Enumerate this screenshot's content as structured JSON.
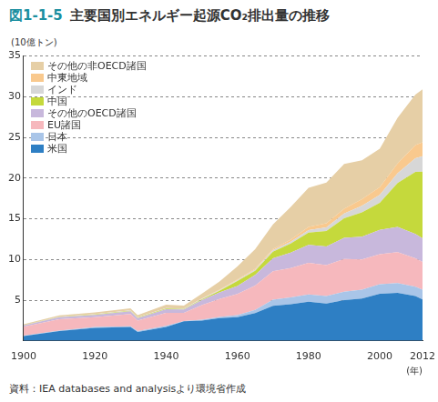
{
  "chart_data": {
    "type": "area",
    "title": "図1-1-5　主要国別エネルギー起源CO₂排出量の推移",
    "y_label": "(10億トン)",
    "x_label": "(年)",
    "note": "資料：IEA databases and analysisより環境省作成",
    "stacked": true,
    "grid": true,
    "legend": "top-left",
    "x": [
      1900,
      1910,
      1920,
      1930,
      1932,
      1940,
      1945,
      1950,
      1955,
      1960,
      1965,
      1970,
      1975,
      1980,
      1985,
      1990,
      1995,
      2000,
      2005,
      2010,
      2012
    ],
    "xlim": [
      1900,
      2012
    ],
    "xticks": [
      1900,
      1920,
      1940,
      1960,
      1980,
      2000,
      2012
    ],
    "ylim": [
      0,
      35
    ],
    "yticks": [
      5,
      10,
      15,
      20,
      25,
      30,
      35
    ],
    "series": [
      {
        "name": "米国",
        "color": "#2e7fc4",
        "values": [
          0.6,
          1.2,
          1.6,
          1.7,
          1.1,
          1.7,
          2.4,
          2.5,
          2.8,
          2.9,
          3.4,
          4.3,
          4.5,
          4.8,
          4.6,
          5.0,
          5.2,
          5.8,
          5.9,
          5.5,
          5.1
        ]
      },
      {
        "name": "日本",
        "color": "#a9c5e8",
        "values": [
          0.05,
          0.07,
          0.1,
          0.1,
          0.1,
          0.15,
          0.05,
          0.1,
          0.15,
          0.25,
          0.4,
          0.75,
          0.85,
          0.9,
          0.9,
          1.05,
          1.1,
          1.15,
          1.2,
          1.15,
          1.2
        ]
      },
      {
        "name": "EU諸国",
        "color": "#f6b8bd",
        "values": [
          1.1,
          1.4,
          1.2,
          1.5,
          1.3,
          1.6,
          1.0,
          1.8,
          2.2,
          2.6,
          3.0,
          3.5,
          3.6,
          3.9,
          3.8,
          4.0,
          3.7,
          3.7,
          3.8,
          3.5,
          3.4
        ]
      },
      {
        "name": "その他のOECD諸国",
        "color": "#c8b8dc",
        "values": [
          0.15,
          0.25,
          0.3,
          0.35,
          0.3,
          0.45,
          0.4,
          0.6,
          0.8,
          1.0,
          1.3,
          1.6,
          1.9,
          2.2,
          2.3,
          2.6,
          2.8,
          3.0,
          3.1,
          3.0,
          2.9
        ]
      },
      {
        "name": "中国",
        "color": "#c5d93c",
        "values": [
          0.02,
          0.03,
          0.04,
          0.05,
          0.05,
          0.07,
          0.06,
          0.1,
          0.2,
          0.6,
          0.5,
          0.8,
          1.1,
          1.5,
          1.9,
          2.4,
          3.0,
          3.3,
          5.4,
          7.6,
          8.2
        ]
      },
      {
        "name": "インド",
        "color": "#d7d7d7",
        "values": [
          0.02,
          0.03,
          0.04,
          0.04,
          0.04,
          0.05,
          0.05,
          0.07,
          0.09,
          0.12,
          0.16,
          0.2,
          0.25,
          0.3,
          0.45,
          0.6,
          0.8,
          1.0,
          1.2,
          1.7,
          1.9
        ]
      },
      {
        "name": "中東地域",
        "color": "#f9c98e",
        "values": [
          0.0,
          0.0,
          0.01,
          0.01,
          0.01,
          0.02,
          0.02,
          0.03,
          0.05,
          0.07,
          0.1,
          0.15,
          0.25,
          0.4,
          0.5,
          0.6,
          0.8,
          0.95,
          1.2,
          1.6,
          1.7
        ]
      },
      {
        "name": "その他の非OECD諸国",
        "color": "#e6cfa6",
        "values": [
          0.1,
          0.15,
          0.2,
          0.25,
          0.25,
          0.4,
          0.35,
          0.6,
          1.0,
          1.6,
          2.4,
          3.0,
          4.0,
          4.8,
          5.0,
          5.5,
          4.8,
          4.7,
          5.6,
          6.2,
          6.5
        ]
      }
    ]
  }
}
